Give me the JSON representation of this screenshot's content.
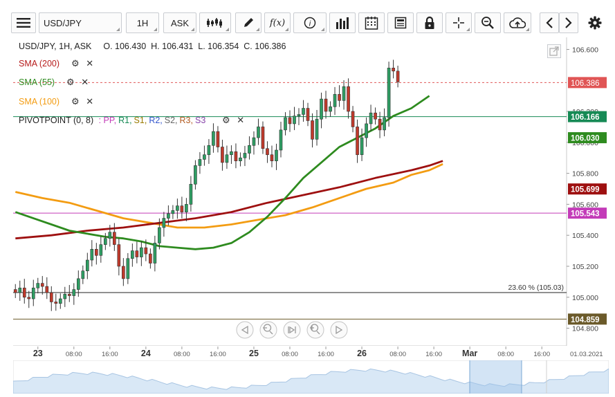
{
  "toolbar": {
    "menu_icon": "hamburger-menu-icon",
    "symbol": "USD/JPY",
    "timeframe": "1H",
    "price_side": "ASK",
    "fx_label": "f(x)",
    "icons": [
      "candlestick-type-icon",
      "draw-pencil-icon",
      "function-icon",
      "info-icon",
      "volume-bars-icon",
      "calendar-icon",
      "news-icon",
      "lock-icon",
      "crosshair-icon",
      "zoom-icon",
      "cloud-save-icon",
      "prev-arrow-icon",
      "next-arrow-icon",
      "settings-icon"
    ]
  },
  "header": {
    "instrument": "USD/JPY, 1H, ASK",
    "ohlc": "O. 106.430  H. 106.431  L. 106.354  C. 106.386"
  },
  "indicators": [
    {
      "label": "SMA (200)",
      "color": "#b71c1c"
    },
    {
      "label": "SMA (55)",
      "color": "#2e8b1f"
    },
    {
      "label": "SMA (100)",
      "color": "#f39c12"
    }
  ],
  "pivot": {
    "label": "PIVOTPOINT (0, 8)",
    "parts": [
      {
        "text": ": PP,",
        "color": "#c33bb8"
      },
      {
        "text": "R1,",
        "color": "#168a55"
      },
      {
        "text": "S1,",
        "color": "#9a7a00"
      },
      {
        "text": "R2,",
        "color": "#3355cc"
      },
      {
        "text": "S2,",
        "color": "#666666"
      },
      {
        "text": "R3,",
        "color": "#b35a1f"
      },
      {
        "text": "S3",
        "color": "#8844aa"
      }
    ]
  },
  "fib_label": "23.60 % (105.03)",
  "nav_icons": [
    "scroll-left-icon",
    "zoom-out-icon",
    "reset-zoom-icon",
    "zoom-in-icon",
    "scroll-right-icon"
  ],
  "chart_data": {
    "type": "candlestick",
    "symbol": "USD/JPY",
    "timeframe": "1H",
    "ylim": [
      104.74,
      106.66
    ],
    "y_ticks": [
      104.8,
      105.0,
      105.2,
      105.4,
      105.6,
      105.8,
      106.0,
      106.2,
      106.6
    ],
    "y_tick_labels": [
      "104.800",
      "105.000",
      "105.200",
      "105.400",
      "105.600",
      "105.800",
      "106.000",
      "106.200",
      "106.600"
    ],
    "x_tick_labels": [
      {
        "bar": 5,
        "label": "23",
        "major": true
      },
      {
        "bar": 13,
        "label": "08:00",
        "major": false
      },
      {
        "bar": 21,
        "label": "16:00",
        "major": false
      },
      {
        "bar": 29,
        "label": "24",
        "major": true
      },
      {
        "bar": 37,
        "label": "08:00",
        "major": false
      },
      {
        "bar": 45,
        "label": "16:00",
        "major": false
      },
      {
        "bar": 53,
        "label": "25",
        "major": true
      },
      {
        "bar": 61,
        "label": "08:00",
        "major": false
      },
      {
        "bar": 69,
        "label": "16:00",
        "major": false
      },
      {
        "bar": 77,
        "label": "26",
        "major": true
      },
      {
        "bar": 85,
        "label": "08:00",
        "major": false
      },
      {
        "bar": 93,
        "label": "16:00",
        "major": false
      },
      {
        "bar": 101,
        "label": "Mar",
        "major": true
      },
      {
        "bar": 109,
        "label": "08:00",
        "major": false
      },
      {
        "bar": 117,
        "label": "16:00",
        "major": false
      }
    ],
    "bar_count_axis": 123,
    "last_date_label": "01.03.2021",
    "candles_close": [
      105.03,
      105.06,
      105.0,
      104.99,
      105.06,
      105.09,
      105.07,
      105.03,
      104.97,
      104.96,
      104.99,
      105.02,
      105.01,
      105.05,
      105.12,
      105.17,
      105.24,
      105.31,
      105.27,
      105.34,
      105.38,
      105.42,
      105.34,
      105.2,
      105.12,
      105.25,
      105.3,
      105.26,
      105.32,
      105.28,
      105.22,
      105.35,
      105.45,
      105.51,
      105.54,
      105.56,
      105.59,
      105.55,
      105.6,
      105.73,
      105.85,
      105.89,
      105.92,
      105.98,
      106.07,
      105.97,
      105.87,
      105.92,
      105.94,
      105.88,
      105.9,
      105.93,
      105.98,
      106.03,
      106.1,
      105.96,
      105.92,
      105.88,
      105.95,
      106.08,
      106.16,
      106.12,
      106.17,
      106.18,
      106.22,
      106.14,
      106.02,
      106.15,
      106.28,
      106.2,
      106.23,
      106.31,
      106.27,
      106.36,
      106.2,
      106.1,
      105.92,
      106.03,
      106.12,
      106.19,
      106.15,
      106.08,
      106.16,
      106.48,
      106.46,
      106.39
    ],
    "sma_55": [
      [
        0,
        105.55
      ],
      [
        4,
        105.51
      ],
      [
        8,
        105.47
      ],
      [
        12,
        105.43
      ],
      [
        16,
        105.41
      ],
      [
        20,
        105.39
      ],
      [
        24,
        105.38
      ],
      [
        28,
        105.36
      ],
      [
        32,
        105.33
      ],
      [
        36,
        105.32
      ],
      [
        40,
        105.31
      ],
      [
        44,
        105.32
      ],
      [
        48,
        105.35
      ],
      [
        52,
        105.42
      ],
      [
        56,
        105.52
      ],
      [
        60,
        105.64
      ],
      [
        64,
        105.77
      ],
      [
        68,
        105.87
      ],
      [
        72,
        105.97
      ],
      [
        76,
        106.03
      ],
      [
        80,
        106.09
      ],
      [
        84,
        106.17
      ],
      [
        88,
        106.22
      ],
      [
        92,
        106.3
      ]
    ],
    "sma_100": [
      [
        0,
        105.68
      ],
      [
        6,
        105.64
      ],
      [
        12,
        105.61
      ],
      [
        18,
        105.56
      ],
      [
        24,
        105.51
      ],
      [
        30,
        105.48
      ],
      [
        36,
        105.45
      ],
      [
        42,
        105.45
      ],
      [
        48,
        105.47
      ],
      [
        54,
        105.5
      ],
      [
        60,
        105.53
      ],
      [
        66,
        105.58
      ],
      [
        72,
        105.64
      ],
      [
        78,
        105.7
      ],
      [
        84,
        105.74
      ],
      [
        88,
        105.79
      ],
      [
        92,
        105.82
      ],
      [
        95,
        105.86
      ]
    ],
    "sma_200": [
      [
        0,
        105.38
      ],
      [
        8,
        105.4
      ],
      [
        16,
        105.43
      ],
      [
        24,
        105.45
      ],
      [
        32,
        105.48
      ],
      [
        40,
        105.51
      ],
      [
        48,
        105.55
      ],
      [
        56,
        105.61
      ],
      [
        64,
        105.66
      ],
      [
        72,
        105.71
      ],
      [
        80,
        105.77
      ],
      [
        88,
        105.82
      ],
      [
        92,
        105.85
      ],
      [
        95,
        105.88
      ]
    ],
    "price_lines": [
      {
        "value": 106.386,
        "label": "106.386",
        "color": "#e05555",
        "style": "dashed"
      },
      {
        "value": 106.166,
        "label": "106.166",
        "color": "#168a55",
        "style": "solid"
      },
      {
        "value": 106.03,
        "label": "106.030",
        "color": "#2e8b1f",
        "style": "none"
      },
      {
        "value": 105.699,
        "label": "105.699",
        "color": "#9e1010",
        "style": "none"
      },
      {
        "value": 105.543,
        "label": "105.543",
        "color": "#c33bb8",
        "style": "solid"
      },
      {
        "value": 105.03,
        "label": "",
        "color": "#222222",
        "style": "solid"
      },
      {
        "value": 104.859,
        "label": "104.859",
        "color": "#6b5a2a",
        "style": "solid"
      }
    ],
    "colors": {
      "up": "#2e9e63",
      "down": "#c0392b",
      "axis_bg": "#ffffff"
    }
  }
}
